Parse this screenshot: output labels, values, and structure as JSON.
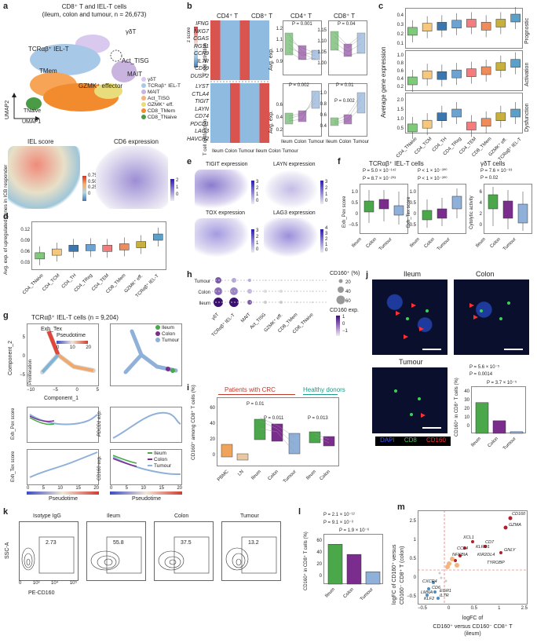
{
  "panels": {
    "a": "a",
    "b": "b",
    "c": "c",
    "d": "d",
    "e": "e",
    "f": "f",
    "g": "g",
    "h": "h",
    "i": "i",
    "j": "j",
    "k": "k",
    "l": "l",
    "m": "m"
  },
  "a": {
    "title_line1": "CD8⁺ T and IEL-T cells",
    "title_line2": "(ileum, colon and tumour, n = 26,673)",
    "clusters": [
      "γδT",
      "TCRαβ⁺ IEL-T",
      "Act_TISG",
      "MAIT",
      "TMem",
      "GZMK⁺ effector",
      "TNaive"
    ],
    "legend": [
      "γδT",
      "TCRαβ⁺ IEL-T",
      "MAIT",
      "Act_TISG",
      "GZMK⁺ eff.",
      "CD8_TMem",
      "CD8_TNaive"
    ],
    "legend_colors": [
      "#d9c9ef",
      "#a8c8e8",
      "#c9b3df",
      "#f3b27a",
      "#e8dd7a",
      "#f28a2e",
      "#4b9a45"
    ],
    "umap1": "UMAP1",
    "umap2": "UMAP2",
    "iel_title": "IEL score",
    "cd6_title": "CD6 expression",
    "iel_ticks": [
      "0.75",
      "0.50",
      "0.25",
      "0"
    ],
    "cd6_ticks": [
      "2",
      "1",
      "0"
    ]
  },
  "b": {
    "col_head_cd4": "CD4⁺ T",
    "col_head_cd8": "CD8⁺ T",
    "zscore": "z score",
    "zticks": [
      "2",
      "1",
      "0",
      "−1",
      "−2"
    ],
    "row_group1": "T cell activation",
    "row_group2": "T cell dysfunction",
    "genes_act": [
      "IFNG",
      "NKG7",
      "CGAS",
      "RGS1",
      "CCR9",
      "IL7R",
      "CD69",
      "DUSP2"
    ],
    "genes_dys": [
      "LYST",
      "CTLA4",
      "TIGIT",
      "LAYN",
      "CD74",
      "PDCD1",
      "LAG3",
      "HAVCR2"
    ],
    "xcats": [
      "Ileum",
      "Colon",
      "Tumour",
      "Ileum",
      "Colon",
      "Tumour"
    ],
    "line_cd4": "CD4⁺ T",
    "line_cd8": "CD8⁺ T",
    "avgexp": "Avg. exp.",
    "p_top_cd4": "P = 0.001",
    "p_top_cd8": "P = 0.04",
    "p_bot_cd4": "P = 0.002",
    "p_bot_cd8a": "P = 0.01",
    "p_bot_cd8b": "P = 0.002",
    "yt_top_cd4": [
      "1.2",
      "1.1",
      "1.0",
      "0.9"
    ],
    "yt_top_cd8": [
      "1.15",
      "1.10",
      "1.05",
      "1.00"
    ],
    "yt_bot_cd4": [
      "0.6",
      "0.4",
      "0.2"
    ],
    "yt_bot_cd8": [
      "1.0",
      "0.8",
      "0.6",
      "0.4"
    ],
    "xt": [
      "Ileum",
      "Colon",
      "Tumour"
    ]
  },
  "c": {
    "ylabel": "Average gene expression",
    "rows": [
      "Prognostic",
      "Activation",
      "Dysfunction"
    ],
    "yt_prog": [
      "0.4",
      "0.3",
      "0.2",
      "0.1"
    ],
    "yt_act": [
      "1.0",
      "0.8",
      "0.6",
      "0.4",
      "0.2"
    ],
    "yt_dys": [
      "2.0",
      "1.5",
      "1.0",
      "0.5"
    ],
    "cats": [
      "CD4_TNaive",
      "CD4_TCM",
      "CD4_TH",
      "CD4_TReg",
      "CD4_TEM",
      "CD8_TMem",
      "GZMK⁺ eff.",
      "TCRαβ⁺ IEL-T"
    ],
    "colors": [
      "#7ec97a",
      "#f6c87d",
      "#3a77b0",
      "#6ea3d1",
      "#f47c7c",
      "#f08c5a",
      "#c7b03d",
      "#5aa0c8"
    ]
  },
  "d": {
    "ylabel": "Avg. exp. of upregulated genes in ICB responder",
    "yt": [
      "0.12",
      "0.09",
      "0.06",
      "0.03"
    ],
    "cats": [
      "CD4_TNaive",
      "CD4_TCM",
      "CD4_TH",
      "CD4_TReg",
      "CD4_TEM",
      "CD8_TMem",
      "GZMK⁺ eff.",
      "TCRαβ⁺ IEL-T"
    ]
  },
  "e": {
    "titles": [
      "TIGIT expression",
      "LAYN expression",
      "TOX expression",
      "LAG3 expression"
    ],
    "ticks1": [
      "3",
      "2",
      "1",
      "0"
    ],
    "ticks2": [
      "3",
      "2",
      "1",
      "0"
    ],
    "ticks3": [
      "3",
      "2",
      "1",
      "0"
    ],
    "ticks4": [
      "4",
      "3",
      "2",
      "1",
      "0"
    ]
  },
  "f": {
    "head_iel": "TCRαβ⁺ IEL-T cells",
    "head_gd": "γδT cells",
    "y1": "Exh_Pex score",
    "y2": "Exh_Tex score",
    "y3": "Cytolytic activity",
    "p1a": "P = 5.0 × 10⁻¹⁴²",
    "p1b": "P = 8.7 × 10⁻²⁰³",
    "p2a": "P < 1 × 10⁻³⁰⁰",
    "p2b": "P < 1 × 10⁻³⁰⁰",
    "p3a": "P = 7.6 × 10⁻⁶³",
    "p3b": "P = 0.02",
    "yt1": [
      "1.0",
      "0.5",
      "0",
      "−0.5"
    ],
    "yt2": [
      "1.0",
      "0.5",
      "0",
      "−0.5"
    ],
    "yt3": [
      "6",
      "4",
      "2",
      "0"
    ],
    "xt": [
      "Ileum",
      "Colon",
      "Tumour"
    ]
  },
  "g": {
    "title": "TCRαβ⁺ IEL-T cells (n = 9,204)",
    "exh_tex": "Exh_Tex",
    "pseudotime": "Pseudotime",
    "pt_ticks": [
      "0",
      "10",
      "20"
    ],
    "prolif": "Proliferation",
    "comp1": "Component_1",
    "comp2": "Component_2",
    "xt": [
      "−10",
      "−5",
      "0",
      "5"
    ],
    "yt": [
      "5",
      "0",
      "−5"
    ],
    "legend": [
      "Ileum",
      "Colon",
      "Tumour"
    ],
    "legend_colors": [
      "#4aa84a",
      "#7b2d8e",
      "#8fb0d8"
    ],
    "lines": [
      "Exh_Pex score",
      "PDCD1 exp.",
      "Exh_Tex score",
      "CD160 exp."
    ],
    "pt_xt": [
      "0",
      "5",
      "10",
      "15",
      "20"
    ],
    "pt_label": "Pseudotime"
  },
  "h": {
    "rows": [
      "Tumour",
      "Colon",
      "Ileum"
    ],
    "cats": [
      "γδT",
      "TCRαβ⁺ IEL-T",
      "MAIT",
      "Act_TISG",
      "GZMK⁺ eff.",
      "CD8_TMem",
      "CD8_TNaive"
    ],
    "size_title": "CD160⁺ (%)",
    "size_vals": [
      "20",
      "40",
      "60"
    ],
    "color_title": "CD160 exp.",
    "color_vals": [
      "1",
      "0",
      "−1"
    ]
  },
  "i": {
    "ylabel": "CD160⁺ among CD8⁺ T cells (%)",
    "grp1": "Patients with CRC",
    "grp2": "Healthy donors",
    "p1": "P = 0.01",
    "p2": "P = 0.011",
    "p3": "P = 0.013",
    "yt": [
      "60",
      "40",
      "20",
      "0"
    ],
    "xt": [
      "PBMC",
      "LN",
      "Ileum",
      "Colon",
      "Tumour",
      "Ileum",
      "Colon"
    ]
  },
  "j": {
    "titles": [
      "Ileum",
      "Colon",
      "Tumour"
    ],
    "legend": [
      "DAPI",
      "CD8",
      "CD160"
    ],
    "legend_colors": [
      "#3a57ff",
      "#39d353",
      "#ff3030"
    ],
    "ylabel": "CD160⁺ in CD8⁺ T cells (%)",
    "p1": "P = 5.6 × 10⁻⁵",
    "p2": "P = 0.0014",
    "p3": "P = 3.7 × 10⁻⁵",
    "yt": [
      "40",
      "30",
      "20",
      "10",
      "0"
    ],
    "xt": [
      "Ileum",
      "Colon",
      "Tumour"
    ],
    "values": [
      28,
      11.5,
      1.5
    ],
    "colors": [
      "#4aa84a",
      "#7b2d8e",
      "#8fb0d8"
    ]
  },
  "k": {
    "titles": [
      "Isotype IgG",
      "Ileum",
      "Colon",
      "Tumour"
    ],
    "pct": [
      "2.73",
      "55.8",
      "37.5",
      "13.2"
    ],
    "ylabel": "SSC-A",
    "xlabel": "PE-CD160",
    "xt": [
      "0",
      "10³",
      "10⁴",
      "10⁵"
    ]
  },
  "l": {
    "ylabel": "CD160⁺ in CD8⁺ T cells (%)",
    "p1": "P = 2.1 × 10⁻¹²",
    "p2": "P = 9.1 × 10⁻³",
    "p3": "P = 1.9 × 10⁻⁶",
    "yt": [
      "60",
      "40",
      "20",
      "0"
    ],
    "xt": [
      "Ileum",
      "Colon",
      "Tumour"
    ],
    "values": [
      55,
      41,
      17
    ],
    "colors": [
      "#4aa84a",
      "#7b2d8e",
      "#8fb0d8"
    ]
  },
  "m": {
    "ylabel1": "logFC of CD160⁺ versus",
    "ylabel2": "CD160⁻ CD8⁺ T (colon)",
    "xlabel1": "logFC of",
    "xlabel2": "CD160⁺ versus CD160⁻ CD8⁺ T",
    "xlabel3": "(ileum)",
    "genes_up": [
      "CD160",
      "GZMA",
      "XCL1",
      "CD7",
      "KLRD1",
      "GNLY",
      "CCL4",
      "NFKBIA",
      "KIR2DL4",
      "TYROBP"
    ],
    "genes_down": [
      "CXCR4",
      "LMNA",
      "KLF2",
      "CD6",
      "EGR1",
      "IL7R"
    ],
    "xt": [
      "−0.5",
      "0",
      "0.5",
      "1",
      "2.5"
    ],
    "yt": [
      "2.5",
      "1",
      "0.5",
      "0",
      "−0.5"
    ]
  }
}
